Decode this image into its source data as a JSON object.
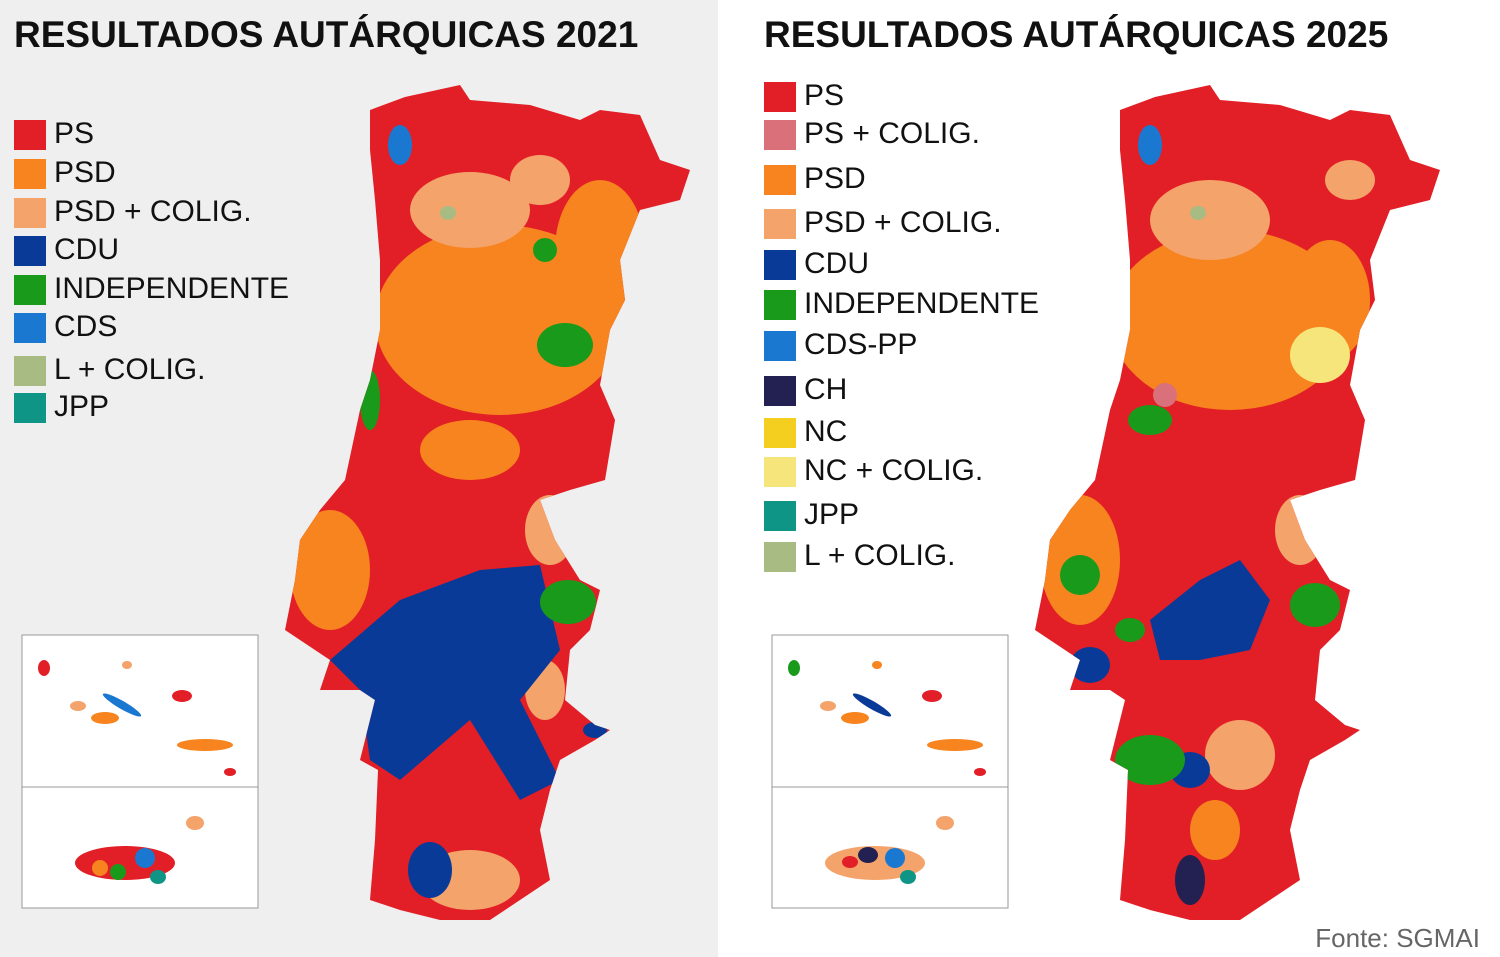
{
  "panels": [
    {
      "title": "RESULTADOS AUTÁRQUICAS 2021",
      "legend": [
        {
          "label": "PS",
          "color": "#e21f26"
        },
        {
          "label": "PSD",
          "color": "#f7841f"
        },
        {
          "label": "PSD + COLIG.",
          "color": "#f4a36b"
        },
        {
          "label": "CDU",
          "color": "#0a3a97"
        },
        {
          "label": "INDEPENDENTE",
          "color": "#1a9a1a"
        },
        {
          "label": "CDS",
          "color": "#1a78d0"
        },
        {
          "label": "L + COLIG.",
          "color": "#a8bb82"
        },
        {
          "label": "JPP",
          "color": "#0f9585"
        }
      ]
    },
    {
      "title": "RESULTADOS AUTÁRQUICAS 2025",
      "legend": [
        {
          "label": "PS",
          "color": "#e21f26"
        },
        {
          "label": "PS + COLIG.",
          "color": "#d9707a"
        },
        {
          "label": "PSD",
          "color": "#f7841f"
        },
        {
          "label": "PSD + COLIG.",
          "color": "#f4a36b"
        },
        {
          "label": "CDU",
          "color": "#0a3a97"
        },
        {
          "label": "INDEPENDENTE",
          "color": "#1a9a1a"
        },
        {
          "label": "CDS-PP",
          "color": "#1a78d0"
        },
        {
          "label": "CH",
          "color": "#232052"
        },
        {
          "label": "NC",
          "color": "#f5cf1f"
        },
        {
          "label": "NC + COLIG.",
          "color": "#f5e57a"
        },
        {
          "label": "JPP",
          "color": "#0f9585"
        },
        {
          "label": "L + COLIG.",
          "color": "#a8bb82"
        }
      ]
    }
  ],
  "source": "Fonte: SGMAI"
}
